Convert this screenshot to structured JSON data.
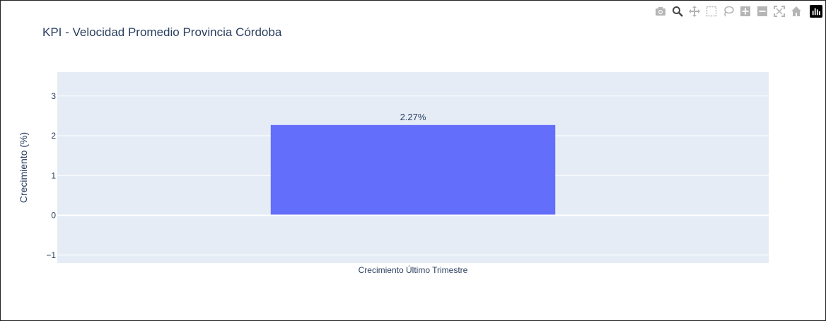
{
  "modebar": {
    "icons": [
      "camera-icon",
      "zoom-icon",
      "pan-icon",
      "box-select-icon",
      "lasso-icon",
      "zoom-in-icon",
      "zoom-out-icon",
      "autoscale-icon",
      "home-icon",
      "plotly-logo-icon"
    ]
  },
  "colors": {
    "plot_bg": "#e5ecf6",
    "bar": "#636efa",
    "text": "#2a3f5f",
    "grid": "#ffffff"
  },
  "chart_data": {
    "type": "bar",
    "title": "KPI - Velocidad Promedio Provincia Córdoba",
    "categories": [
      "Crecimiento Último Trimestre"
    ],
    "values": [
      2.27
    ],
    "value_labels": [
      "2.27%"
    ],
    "xlabel": "",
    "ylabel": "Crecimiento (%)",
    "ylim": [
      -1.2,
      3.6
    ],
    "yticks": [
      -1,
      0,
      1,
      2,
      3
    ],
    "ytick_labels": [
      "−1",
      "0",
      "1",
      "2",
      "3"
    ],
    "grid": true,
    "legend": "none"
  }
}
